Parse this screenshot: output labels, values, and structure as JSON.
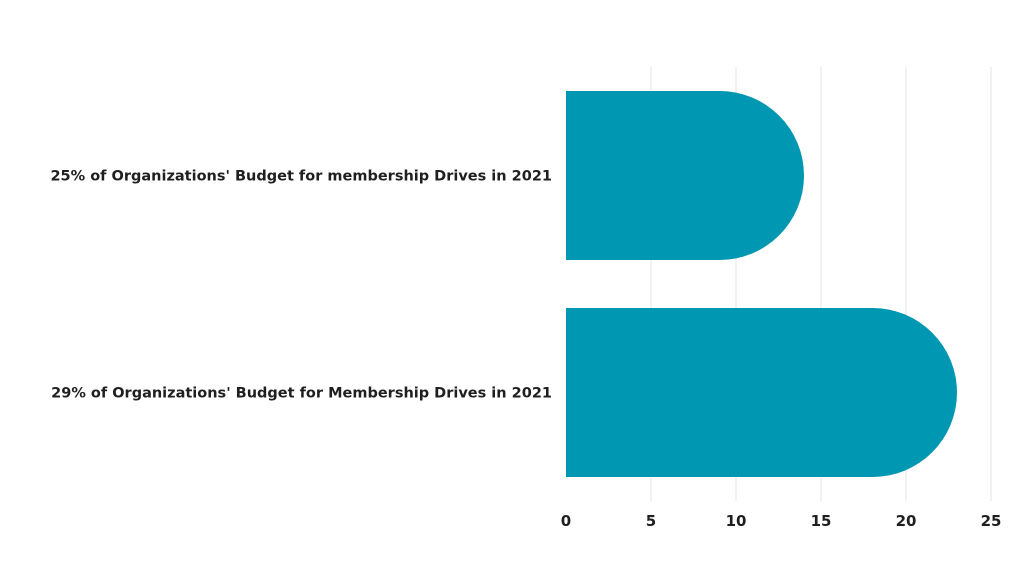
{
  "chart_data": {
    "type": "bar",
    "orientation": "horizontal",
    "categories": [
      "25% of Organizations' Budget for membership Drives in 2021",
      "29% of Organizations' Budget for Membership Drives in 2021"
    ],
    "values": [
      14,
      23
    ],
    "xlim": [
      0,
      25
    ],
    "xticks": [
      0,
      5,
      10,
      15,
      20,
      25
    ],
    "grid": true,
    "legend": "none",
    "bar_color": "#0097b2"
  }
}
